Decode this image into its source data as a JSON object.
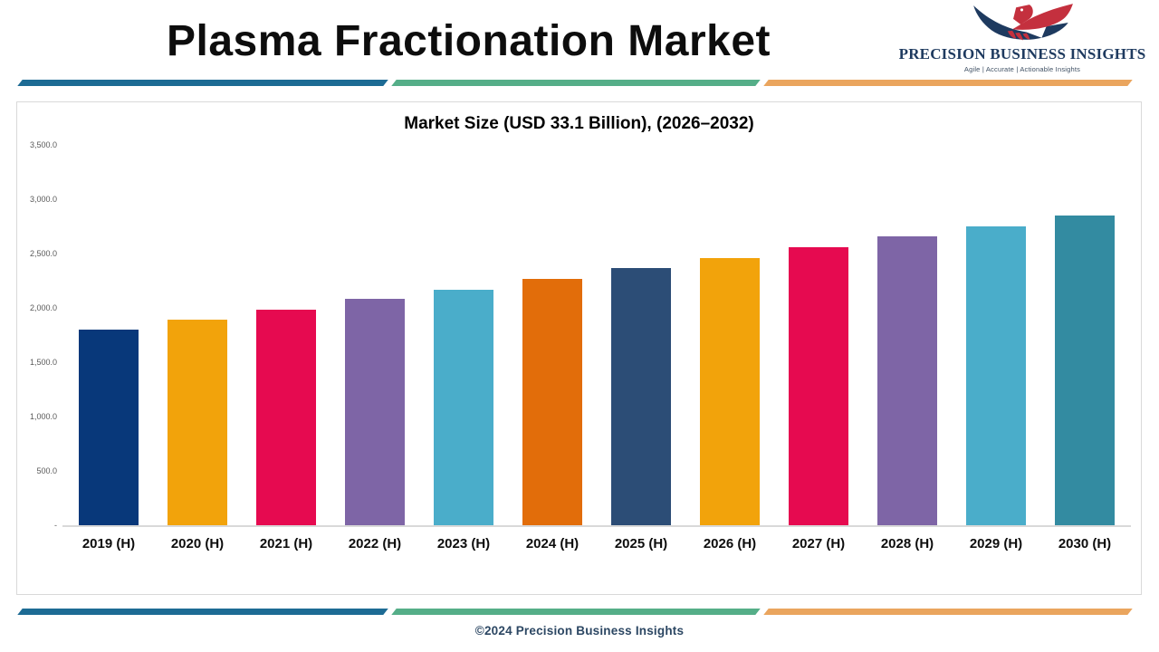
{
  "header": {
    "title": "Plasma Fractionation Market",
    "logo": {
      "icon": "eagle-logo-icon",
      "name": "PRECISION BUSINESS INSIGHTS",
      "tagline": "Agile | Accurate | Actionable Insights"
    }
  },
  "chart_data": {
    "type": "bar",
    "title": "Market Size (USD 33.1 Billion), (2026–2032)",
    "categories": [
      "2019 (H)",
      "2020 (H)",
      "2021 (H)",
      "2022 (H)",
      "2023 (H)",
      "2024 (H)",
      "2025 (H)",
      "2026 (H)",
      "2027 (H)",
      "2028 (H)",
      "2029 (H)",
      "2030 (H)"
    ],
    "values": [
      1800,
      1890,
      1980,
      2080,
      2170,
      2270,
      2370,
      2460,
      2560,
      2660,
      2750,
      2850
    ],
    "bar_colors": [
      "#08387a",
      "#f2a30b",
      "#e60a50",
      "#7e65a6",
      "#4aadca",
      "#e26d0a",
      "#2c4d76",
      "#f2a30b",
      "#e60a50",
      "#7e65a6",
      "#4aadca",
      "#338ba1"
    ],
    "xlabel": "",
    "ylabel": "",
    "ylim": [
      0,
      3500
    ],
    "grid": false,
    "legend": "none",
    "y_ticks": [
      {
        "label": "3,500.0",
        "value": 3500
      },
      {
        "label": "3,000.0",
        "value": 3000
      },
      {
        "label": "2,500.0",
        "value": 2500
      },
      {
        "label": "2,000.0",
        "value": 2000
      },
      {
        "label": "1,500.0",
        "value": 1500
      },
      {
        "label": "1,000.0",
        "value": 1000
      },
      {
        "label": "500.0",
        "value": 500
      },
      {
        "label": "-",
        "value": 0
      }
    ]
  },
  "divider_colors": {
    "blue": "#1d6b94",
    "green": "#55ae88",
    "orange": "#eaa55e"
  },
  "footer": {
    "copyright": "©2024 Precision Business Insights"
  }
}
